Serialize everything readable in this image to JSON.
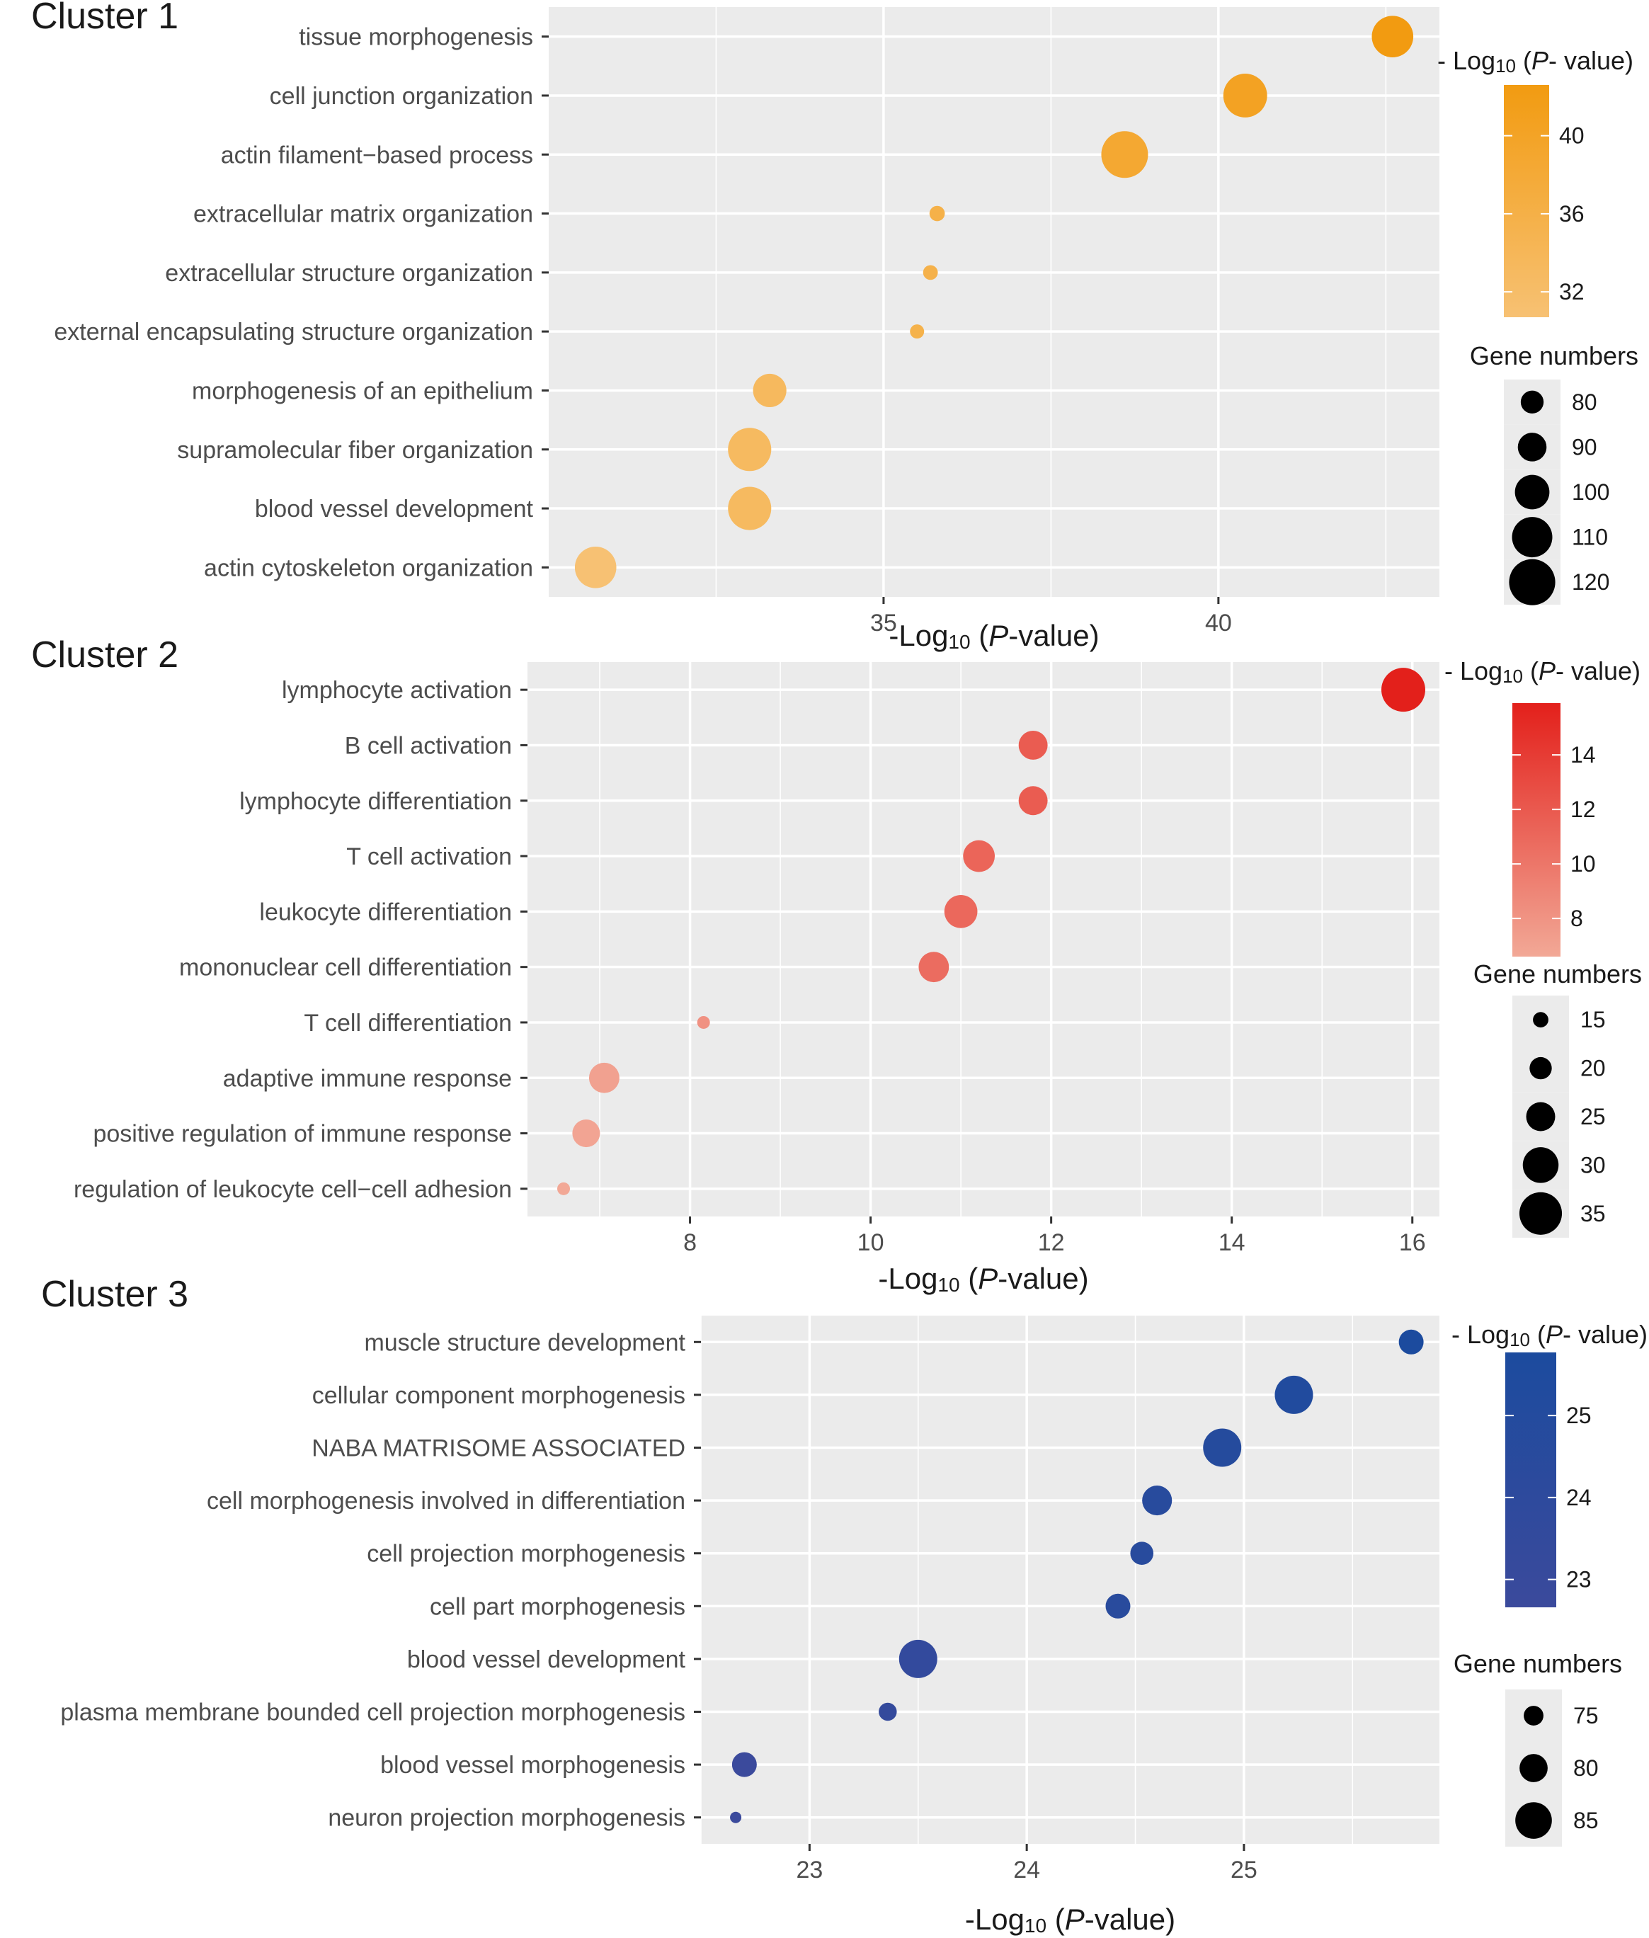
{
  "chart_data": [
    {
      "type": "scatter",
      "title": "Cluster 1",
      "xlabel": {
        "pre": "-Log",
        "sub": "10",
        "open": " (",
        "italic": "P",
        "post": "-value)"
      },
      "xlim": [
        30.0,
        43.3
      ],
      "xticks": [
        35,
        40
      ],
      "xtick_labels": [
        "35",
        "40"
      ],
      "terms": [
        "tissue morphogenesis",
        "cell junction organization",
        "actin filament−based process",
        "extracellular matrix organization",
        "extracellular structure organization",
        "external encapsulating structure organization",
        "morphogenesis of an epithelium",
        "supramolecular fiber organization",
        "blood vessel development",
        "actin cytoskeleton organization"
      ],
      "x_values": [
        42.6,
        40.4,
        38.6,
        35.8,
        35.7,
        35.5,
        33.3,
        33.0,
        33.0,
        30.7
      ],
      "gene_numbers": [
        112,
        116,
        121,
        67,
        66,
        65,
        98,
        115,
        115,
        112
      ],
      "color_legend": {
        "title": {
          "pre": "- Log",
          "sub": "10",
          "open": " (",
          "italic": "P",
          "post": "- value)"
        },
        "range": [
          30.7,
          42.6
        ],
        "ticks": [
          32,
          36,
          40
        ],
        "tick_labels": [
          "32",
          "36",
          "40"
        ],
        "low_color": "#f7c173",
        "high_color": "#f29b11"
      },
      "size_legend": {
        "title": "Gene numbers",
        "size_range": [
          65,
          121
        ],
        "values": [
          80,
          90,
          100,
          110,
          120
        ],
        "labels": [
          "80",
          "90",
          "100",
          "110",
          "120"
        ]
      }
    },
    {
      "type": "scatter",
      "title": "Cluster 2",
      "xlabel": {
        "pre": "-Log",
        "sub": "10",
        "open": " (",
        "italic": "P",
        "post": "-value)"
      },
      "xlim": [
        6.2,
        16.3
      ],
      "xticks": [
        8,
        10,
        12,
        14,
        16
      ],
      "xtick_labels": [
        "8",
        "10",
        "12",
        "14",
        "16"
      ],
      "terms": [
        "lymphocyte activation",
        "B cell activation",
        "lymphocyte differentiation",
        "T cell activation",
        "leukocyte differentiation",
        "mononuclear cell differentiation",
        "T cell differentiation",
        "adaptive immune response",
        "positive regulation of immune response",
        "regulation of leukocyte cell−cell adhesion"
      ],
      "x_values": [
        15.9,
        11.8,
        11.8,
        11.2,
        11.0,
        10.7,
        8.15,
        7.05,
        6.85,
        6.6
      ],
      "gene_numbers": [
        36,
        25,
        25,
        27,
        28,
        26,
        13,
        26,
        24,
        13
      ],
      "color_legend": {
        "title": {
          "pre": "- Log",
          "sub": "10",
          "open": " (",
          "italic": "P",
          "post": "- value)"
        },
        "range": [
          6.6,
          15.9
        ],
        "ticks": [
          8,
          10,
          12,
          14
        ],
        "tick_labels": [
          "8",
          "10",
          "12",
          "14"
        ],
        "low_color": "#f2a896",
        "high_color": "#e3201b"
      },
      "size_legend": {
        "title": "Gene numbers",
        "size_range": [
          13,
          36
        ],
        "values": [
          15,
          20,
          25,
          30,
          35
        ],
        "labels": [
          "15",
          "20",
          "25",
          "30",
          "35"
        ]
      }
    },
    {
      "type": "scatter",
      "title": "Cluster 3",
      "xlabel": {
        "pre": "-Log",
        "sub": "10",
        "open": " (",
        "italic": "P",
        "post": "-value)"
      },
      "xlim": [
        22.5,
        25.9
      ],
      "xticks": [
        23,
        24,
        25
      ],
      "xtick_labels": [
        "23",
        "24",
        "25"
      ],
      "terms": [
        "muscle structure development",
        "cellular component morphogenesis",
        "NABA MATRISOME ASSOCIATED",
        "cell morphogenesis involved in differentiation",
        "cell projection morphogenesis",
        "cell part morphogenesis",
        "blood vessel development",
        "plasma membrane bounded cell projection morphogenesis",
        "blood vessel morphogenesis",
        "neuron projection morphogenesis"
      ],
      "x_values": [
        25.77,
        25.23,
        24.9,
        24.6,
        24.53,
        24.42,
        23.5,
        23.36,
        22.7,
        22.66
      ],
      "gene_numbers": [
        78,
        86,
        86,
        81,
        77,
        78,
        86,
        74,
        78,
        70
      ],
      "color_legend": {
        "title": {
          "pre": "- Log",
          "sub": "10",
          "open": " (",
          "italic": "P",
          "post": "- value)"
        },
        "range": [
          22.66,
          25.77
        ],
        "ticks": [
          23,
          24,
          25
        ],
        "tick_labels": [
          "23",
          "24",
          "25"
        ],
        "low_color": "#3b4a9c",
        "high_color": "#1c4b9e"
      },
      "size_legend": {
        "title": "Gene numbers",
        "size_range": [
          70,
          86
        ],
        "values": [
          75,
          80,
          85
        ],
        "labels": [
          "75",
          "80",
          "85"
        ]
      }
    }
  ]
}
